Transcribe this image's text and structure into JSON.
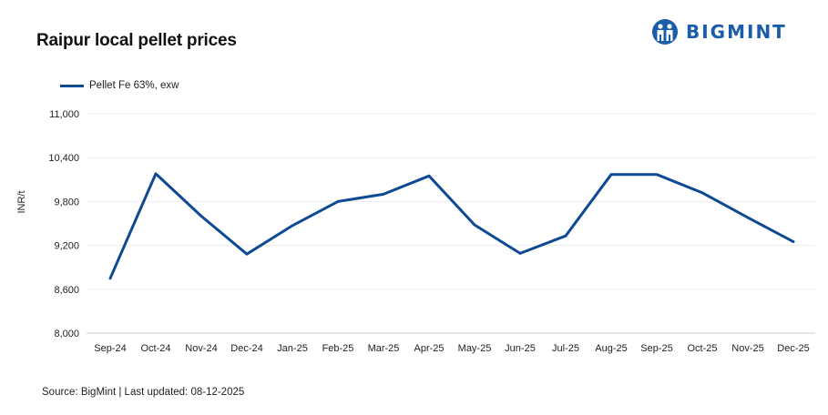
{
  "title": "Raipur local pellet prices",
  "brand": {
    "name": "BIGMINT",
    "color": "#1a5da8"
  },
  "source": "Source: BigMint | Last updated: 08-12-2025",
  "chart_data": {
    "type": "line",
    "categories": [
      "Sep-24",
      "Oct-24",
      "Nov-24",
      "Dec-24",
      "Jan-25",
      "Feb-25",
      "Mar-25",
      "Apr-25",
      "May-25",
      "Jun-25",
      "Jul-25",
      "Aug-25",
      "Sep-25",
      "Oct-25",
      "Nov-25",
      "Dec-25"
    ],
    "series": [
      {
        "name": "Pellet Fe 63%, exw",
        "color": "#0d4a93",
        "values": [
          8750,
          10180,
          9600,
          9080,
          9470,
          9800,
          9900,
          10150,
          9480,
          9090,
          9330,
          10170,
          10170,
          9920,
          9580,
          9250
        ]
      }
    ],
    "ylabel": "INR/t",
    "xlabel": "",
    "ylim": [
      8000,
      11000
    ],
    "yticks": [
      8000,
      8600,
      9200,
      9800,
      10400,
      11000
    ],
    "ytick_labels": [
      "8,000",
      "8,600",
      "9,200",
      "9,800",
      "10,400",
      "11,000"
    ],
    "grid": "horizontal",
    "legend_position": "top-left"
  }
}
